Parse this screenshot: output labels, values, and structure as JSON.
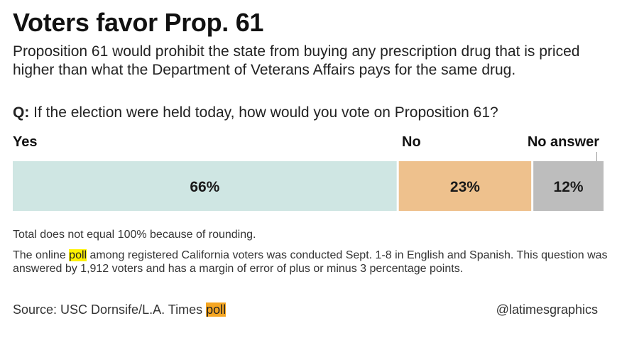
{
  "title": "Voters favor Prop. 61",
  "subtitle": "Proposition 61 would prohibit the state from buying any prescription drug that is priced higher than what the Department of Veterans Affairs pays for the same drug.",
  "question": {
    "prefix": "Q:",
    "text": "If the election were held today, how would you vote on Proposition 61?"
  },
  "chart_data": {
    "type": "bar",
    "orientation": "horizontal-stacked",
    "title": "Voters favor Prop. 61",
    "categories": [
      "Yes",
      "No",
      "No answer"
    ],
    "values": [
      66,
      23,
      12
    ],
    "data_labels": [
      "66%",
      "23%",
      "12%"
    ],
    "colors": [
      "#cfe6e3",
      "#eec18d",
      "#bdbdbd"
    ],
    "unit": "%",
    "xlim": [
      0,
      101
    ],
    "grid": false
  },
  "notes": {
    "rounding": "Total does not equal 100% because of rounding.",
    "methodology_before": "The online",
    "methodology_highlight": "poll",
    "methodology_after": "among registered California voters was conducted Sept. 1-8 in English and Spanish. This question was answered by 1,912 voters and has a margin of error of plus or minus 3 percentage points."
  },
  "source": {
    "prefix": "Source: USC Dornsife/L.A. Times",
    "highlight": "poll"
  },
  "credit": "@latimesgraphics",
  "colors": {
    "highlight_yellow": "#fff200",
    "highlight_orange": "#f5a623",
    "separator": "#ffffff"
  }
}
